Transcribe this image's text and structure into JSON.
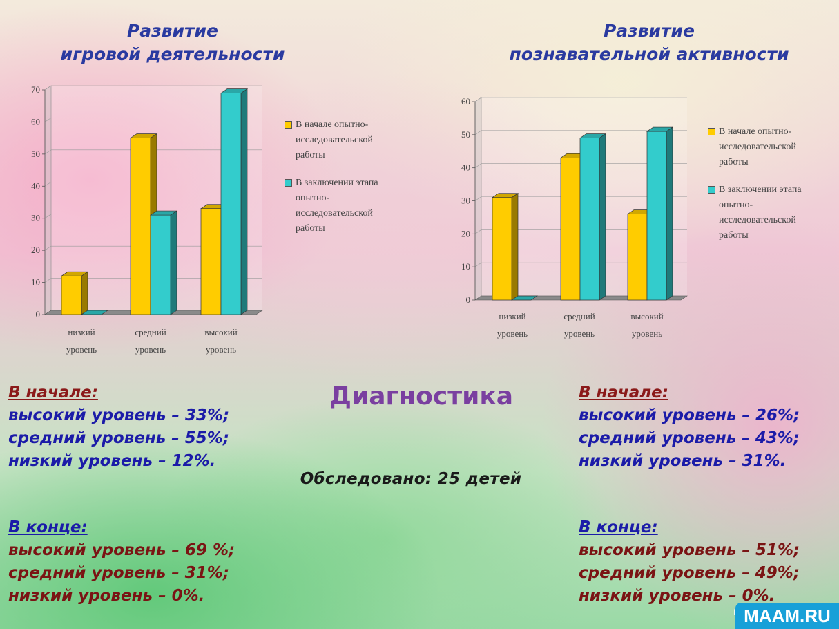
{
  "chart_data": [
    {
      "type": "bar",
      "title_lines": [
        "Развитие",
        "игровой деятельности"
      ],
      "categories": [
        [
          "низкий",
          "уровень"
        ],
        [
          "средний",
          "уровень"
        ],
        [
          "высокий",
          "уровень"
        ]
      ],
      "series": [
        {
          "name_lines": [
            "В начале опытно-",
            "исследовательской",
            "работы"
          ],
          "values": [
            12,
            55,
            33
          ],
          "color": "#ffcc00"
        },
        {
          "name_lines": [
            "В заключении этапа",
            "опытно-",
            "исследовательской",
            "работы"
          ],
          "values": [
            0,
            31,
            69
          ],
          "color": "#33cccc"
        }
      ],
      "ylim": [
        0,
        70
      ],
      "yticks": [
        "0",
        "10",
        "20",
        "30",
        "40",
        "50",
        "60",
        "70"
      ],
      "grid": true,
      "legend": "right"
    },
    {
      "type": "bar",
      "title_lines": [
        "Развитие",
        "познавательной активности"
      ],
      "categories": [
        [
          "низкий",
          "уровень"
        ],
        [
          "средний",
          "уровень"
        ],
        [
          "высокий",
          "уровень"
        ]
      ],
      "series": [
        {
          "name_lines": [
            "В начале опытно-",
            "исследовательской",
            "работы"
          ],
          "values": [
            31,
            43,
            26
          ],
          "color": "#ffcc00"
        },
        {
          "name_lines": [
            "В заключении этапа",
            "опытно-",
            "исследовательской",
            "работы"
          ],
          "values": [
            0,
            49,
            51
          ],
          "color": "#33cccc"
        }
      ],
      "ylim": [
        0,
        60
      ],
      "yticks": [
        "0",
        "10",
        "20",
        "30",
        "40",
        "50",
        "60"
      ],
      "grid": true,
      "legend": "right"
    }
  ],
  "center": {
    "title": "Диагностика",
    "examined": "Обследовано: 25 детей"
  },
  "left_text": {
    "start": {
      "heading": "В начале:",
      "lines": [
        "высокий уровень – 33%;",
        "средний уровень – 55%;",
        "низкий уровень – 12%."
      ]
    },
    "end": {
      "heading": "В конце:",
      "lines": [
        "высокий уровень – 69 %;",
        "средний уровень –  31%;",
        "низкий уровень – 0%."
      ]
    }
  },
  "right_text": {
    "start": {
      "heading": "В начале:",
      "lines": [
        "высокий уровень – 26%;",
        "средний уровень – 43%;",
        "низкий уровень – 31%."
      ]
    },
    "end": {
      "heading": "В конце:",
      "lines": [
        "высокий уровень – 51%;",
        "средний уровень – 49%;",
        "низкий уровень – 0%."
      ]
    }
  },
  "badge": "MAAM.RU"
}
